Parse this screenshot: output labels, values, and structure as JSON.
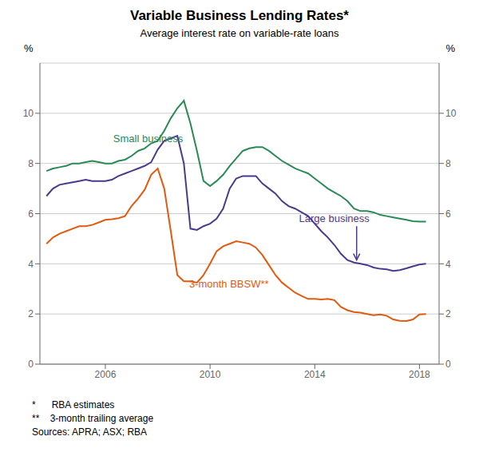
{
  "chart_data": {
    "type": "line",
    "title": "Variable Business Lending Rates*",
    "subtitle": "Average interest rate on variable-rate loans",
    "y_label": "%",
    "y2_label": "%",
    "xlim": [
      2003.5,
      2018.75
    ],
    "xticks": [
      2006,
      2010,
      2014,
      2018
    ],
    "ylim": [
      0,
      12
    ],
    "yticks": [
      0,
      2,
      4,
      6,
      8,
      10
    ],
    "y2lim": [
      0,
      12
    ],
    "y2ticks": [
      0,
      2,
      4,
      6,
      8,
      10
    ],
    "grid": true,
    "x": [
      2003.75,
      2004.0,
      2004.25,
      2004.5,
      2004.75,
      2005.0,
      2005.25,
      2005.5,
      2005.75,
      2006.0,
      2006.25,
      2006.5,
      2006.75,
      2007.0,
      2007.25,
      2007.5,
      2007.75,
      2008.0,
      2008.25,
      2008.5,
      2008.75,
      2009.0,
      2009.25,
      2009.5,
      2009.75,
      2010.0,
      2010.25,
      2010.5,
      2010.75,
      2011.0,
      2011.25,
      2011.5,
      2011.75,
      2012.0,
      2012.25,
      2012.5,
      2012.75,
      2013.0,
      2013.25,
      2013.5,
      2013.75,
      2014.0,
      2014.25,
      2014.5,
      2014.75,
      2015.0,
      2015.25,
      2015.5,
      2015.75,
      2016.0,
      2016.25,
      2016.5,
      2016.75,
      2017.0,
      2017.25,
      2017.5,
      2017.75,
      2018.0,
      2018.25
    ],
    "series": [
      {
        "name": "Small business",
        "color": "#2a8a55",
        "values": [
          7.7,
          7.8,
          7.85,
          7.9,
          8.0,
          8.0,
          8.05,
          8.1,
          8.05,
          8.0,
          8.0,
          8.1,
          8.15,
          8.3,
          8.5,
          8.6,
          8.8,
          8.9,
          9.3,
          9.8,
          10.2,
          10.5,
          9.6,
          8.5,
          7.3,
          7.1,
          7.3,
          7.55,
          7.9,
          8.2,
          8.5,
          8.6,
          8.65,
          8.65,
          8.5,
          8.3,
          8.1,
          7.95,
          7.8,
          7.7,
          7.6,
          7.4,
          7.2,
          7.0,
          6.85,
          6.7,
          6.5,
          6.2,
          6.1,
          6.1,
          6.05,
          5.95,
          5.9,
          5.85,
          5.8,
          5.75,
          5.7,
          5.68,
          5.68
        ]
      },
      {
        "name": "Large business",
        "color": "#4b3a8c",
        "values": [
          6.7,
          7.0,
          7.15,
          7.2,
          7.25,
          7.3,
          7.35,
          7.3,
          7.3,
          7.3,
          7.35,
          7.5,
          7.6,
          7.7,
          7.8,
          7.9,
          8.05,
          8.55,
          8.9,
          9.0,
          9.1,
          8.0,
          5.4,
          5.35,
          5.5,
          5.6,
          5.8,
          6.2,
          7.0,
          7.4,
          7.5,
          7.5,
          7.5,
          7.2,
          7.0,
          6.8,
          6.5,
          6.3,
          6.2,
          6.05,
          5.9,
          5.6,
          5.3,
          5.05,
          4.75,
          4.4,
          4.15,
          4.05,
          4.0,
          3.95,
          3.85,
          3.8,
          3.78,
          3.72,
          3.75,
          3.82,
          3.9,
          3.97,
          4.0
        ]
      },
      {
        "name": "3-month BBSW**",
        "color": "#e05a10",
        "values": [
          4.8,
          5.05,
          5.2,
          5.3,
          5.4,
          5.5,
          5.5,
          5.55,
          5.65,
          5.75,
          5.78,
          5.82,
          5.9,
          6.3,
          6.6,
          6.95,
          7.55,
          7.8,
          7.0,
          5.3,
          3.55,
          3.3,
          3.3,
          3.25,
          3.55,
          4.0,
          4.5,
          4.7,
          4.8,
          4.9,
          4.85,
          4.8,
          4.65,
          4.35,
          3.95,
          3.55,
          3.25,
          3.05,
          2.85,
          2.72,
          2.6,
          2.6,
          2.58,
          2.6,
          2.55,
          2.28,
          2.15,
          2.08,
          2.05,
          2.0,
          1.95,
          1.98,
          1.93,
          1.78,
          1.73,
          1.72,
          1.78,
          1.98,
          2.0
        ]
      }
    ],
    "annotations": [
      {
        "text": "Small business",
        "x": 2006.3,
        "y": 8.85,
        "color": "#2a8a55"
      },
      {
        "text": "Large business",
        "x": 2013.4,
        "y": 5.65,
        "color": "#4b3a8c"
      },
      {
        "text": "3-month BBSW**",
        "x": 2009.2,
        "y": 3.05,
        "color": "#e05a10"
      }
    ],
    "arrows": [
      {
        "x": 2015.6,
        "y_start": 5.5,
        "y_end": 4.15,
        "color": "#4b3a8c"
      }
    ],
    "footnotes": [
      "*      RBA estimates",
      "**    3-month trailing average",
      "Sources: APRA; ASX; RBA"
    ]
  }
}
